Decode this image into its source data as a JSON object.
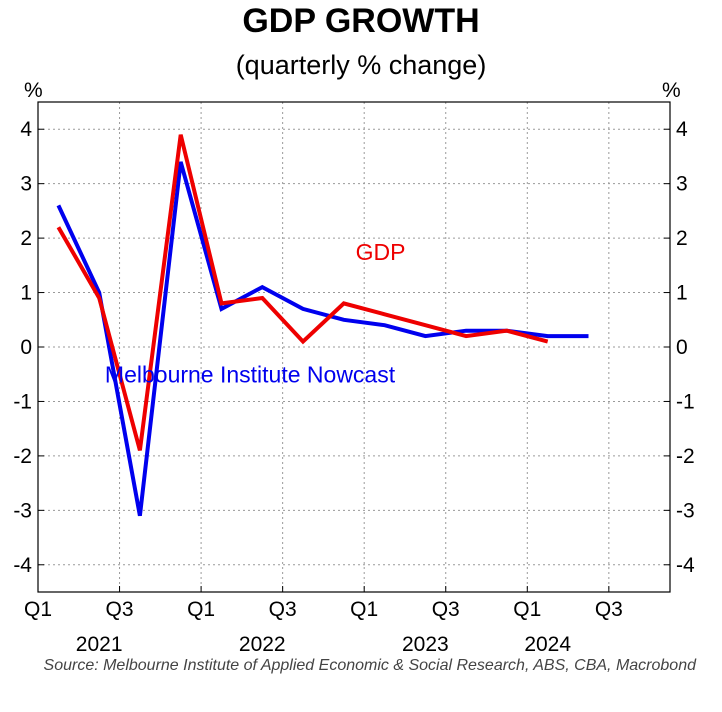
{
  "chart_data": {
    "type": "line",
    "title": "GDP GROWTH",
    "subtitle": "(quarterly % change)",
    "ylabel_left": "%",
    "ylabel_right": "%",
    "ylim": [
      -4.5,
      4.5
    ],
    "yticks": [
      4,
      3,
      2,
      1,
      0,
      -1,
      -2,
      -3,
      -4
    ],
    "ytick_labels": [
      "4",
      "3",
      "2",
      "1",
      "0",
      "-1",
      "-2",
      "-3",
      "-4"
    ],
    "xlim": [
      2021.0,
      2024.875
    ],
    "xticks": [
      {
        "x": 2021.0,
        "label": "Q1"
      },
      {
        "x": 2021.5,
        "label": "Q3"
      },
      {
        "x": 2022.0,
        "label": "Q1"
      },
      {
        "x": 2022.5,
        "label": "Q3"
      },
      {
        "x": 2023.0,
        "label": "Q1"
      },
      {
        "x": 2023.5,
        "label": "Q3"
      },
      {
        "x": 2024.0,
        "label": "Q1"
      },
      {
        "x": 2024.5,
        "label": "Q3"
      }
    ],
    "year_labels": [
      {
        "x": 2021.375,
        "label": "2021"
      },
      {
        "x": 2022.375,
        "label": "2022"
      },
      {
        "x": 2023.375,
        "label": "2023"
      },
      {
        "x": 2024.125,
        "label": "2024"
      }
    ],
    "grid": true,
    "series": [
      {
        "name": "Melbourne Institute Nowcast",
        "color": "#0000ee",
        "label_position": {
          "x": 2022.3,
          "y": -0.65
        },
        "points": [
          {
            "x": 2021.125,
            "y": 2.6
          },
          {
            "x": 2021.375,
            "y": 1.0
          },
          {
            "x": 2021.625,
            "y": -3.1
          },
          {
            "x": 2021.875,
            "y": 3.4
          },
          {
            "x": 2022.125,
            "y": 0.7
          },
          {
            "x": 2022.375,
            "y": 1.1
          },
          {
            "x": 2022.625,
            "y": 0.7
          },
          {
            "x": 2022.875,
            "y": 0.5
          },
          {
            "x": 2023.125,
            "y": 0.4
          },
          {
            "x": 2023.375,
            "y": 0.2
          },
          {
            "x": 2023.625,
            "y": 0.3
          },
          {
            "x": 2023.875,
            "y": 0.3
          },
          {
            "x": 2024.125,
            "y": 0.2
          },
          {
            "x": 2024.375,
            "y": 0.2
          }
        ]
      },
      {
        "name": "GDP",
        "color": "#ee0000",
        "label_position": {
          "x": 2023.1,
          "y": 1.6
        },
        "points": [
          {
            "x": 2021.125,
            "y": 2.2
          },
          {
            "x": 2021.375,
            "y": 0.9
          },
          {
            "x": 2021.625,
            "y": -1.9
          },
          {
            "x": 2021.875,
            "y": 3.9
          },
          {
            "x": 2022.125,
            "y": 0.8
          },
          {
            "x": 2022.375,
            "y": 0.9
          },
          {
            "x": 2022.625,
            "y": 0.1
          },
          {
            "x": 2022.875,
            "y": 0.8
          },
          {
            "x": 2023.125,
            "y": 0.6
          },
          {
            "x": 2023.375,
            "y": 0.4
          },
          {
            "x": 2023.625,
            "y": 0.2
          },
          {
            "x": 2023.875,
            "y": 0.3
          },
          {
            "x": 2024.125,
            "y": 0.1
          }
        ]
      }
    ],
    "source": "Source: Melbourne Institute of Applied Economic & Social Research, ABS, CBA, Macrobond"
  }
}
